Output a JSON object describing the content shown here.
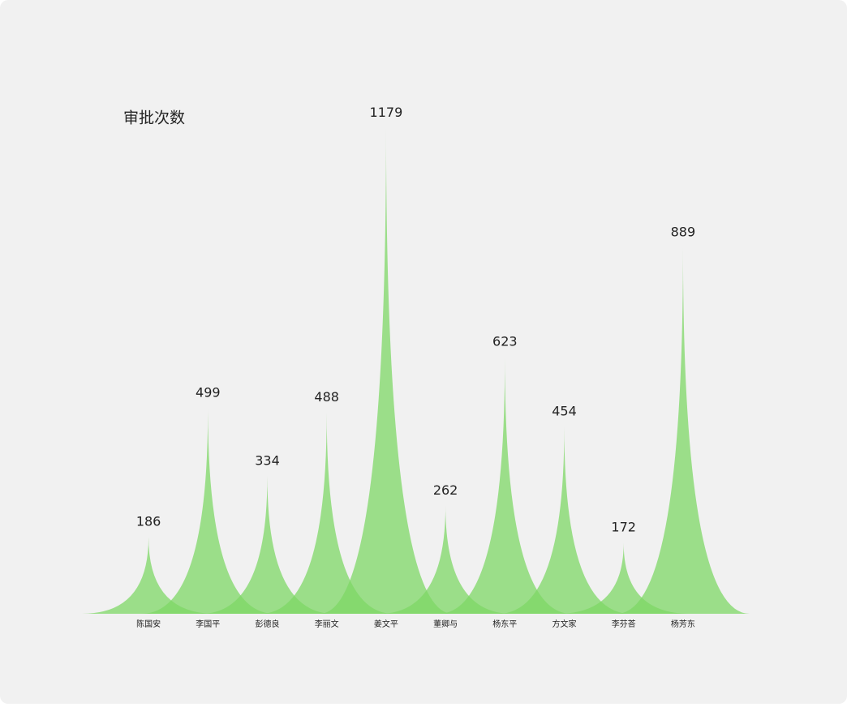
{
  "chart_data": {
    "type": "pictorial-spike",
    "title": "审批次数",
    "categories": [
      "陈国安",
      "李国平",
      "彭德良",
      "李丽文",
      "姜文平",
      "董卿与",
      "杨东平",
      "方文家",
      "李芬荅",
      "杨芳东"
    ],
    "values": [
      186,
      499,
      334,
      488,
      1179,
      262,
      623,
      454,
      172,
      889
    ],
    "color": "#7ed766"
  }
}
